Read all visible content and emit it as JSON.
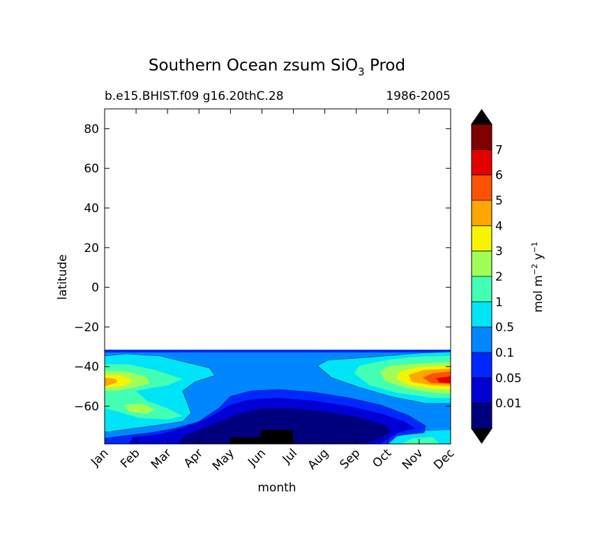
{
  "chart_data": {
    "type": "contourf",
    "title": {
      "main": "Southern Ocean zsum SiO",
      "subscript": "3",
      "suffix": " Prod"
    },
    "subtitle_left": "b.e15.BHIST.f09 g16.20thC.28",
    "subtitle_right": "1986-2005",
    "xlabel": "month",
    "ylabel": "latitude",
    "x_ticks": [
      "Jan",
      "Feb",
      "Mar",
      "Apr",
      "May",
      "Jun",
      "Jul",
      "Aug",
      "Sep",
      "Oct",
      "Nov",
      "Dec"
    ],
    "xlim": [
      1,
      12
    ],
    "ylim": [
      -79,
      90
    ],
    "y_ticks": [
      80,
      60,
      40,
      20,
      0,
      -20,
      -40,
      -60
    ],
    "y_tick_labels": [
      "80",
      "60",
      "40",
      "20",
      "0",
      "−20",
      "−40",
      "−60"
    ],
    "data_lat_range": [
      -79,
      -32
    ],
    "contour_levels": [
      0,
      0.01,
      0.05,
      0.1,
      0.5,
      1,
      2,
      3,
      4,
      5,
      6,
      7,
      8
    ],
    "colorbar": {
      "tick_labels": [
        "0.01",
        "0.05",
        "0.1",
        "0.5",
        "1",
        "2",
        "3",
        "4",
        "5",
        "6",
        "7"
      ],
      "colors": [
        "#00007f",
        "#0000d5",
        "#0027ff",
        "#0087ff",
        "#00e4f7",
        "#43ffb3",
        "#a0ff56",
        "#f7f400",
        "#ffa600",
        "#ff5200",
        "#e50000",
        "#7f0000"
      ],
      "extend": "both",
      "under_color": "#000000",
      "over_color": "#000000",
      "label": {
        "prefix": "mol m",
        "sup1": "−2",
        "mid": " y",
        "sup2": "−1"
      }
    },
    "grid": false
  }
}
